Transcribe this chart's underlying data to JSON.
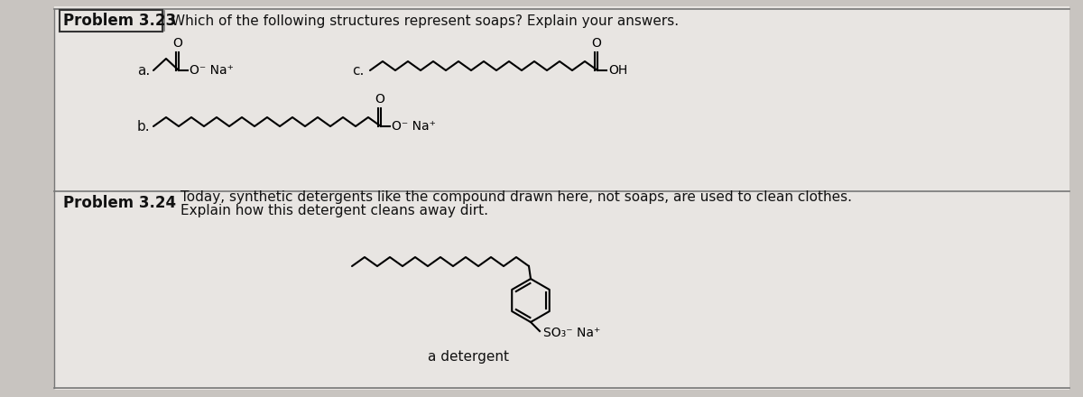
{
  "bg_color": "#c8c4c0",
  "panel_bg": "#e8e5e2",
  "text_color": "#111111",
  "problem323_label": "Problem 3.23",
  "problem323_text": "Which of the following structures represent soaps? Explain your answers.",
  "problem324_label": "Problem 3.24",
  "problem324_text1": "Today, synthetic detergents like the compound drawn here, not soaps, are used to clean clothes.",
  "problem324_text2": "Explain how this detergent cleans away dirt.",
  "label_a": "a.",
  "label_b": "b.",
  "label_c": "c.",
  "label_detergent": "a detergent",
  "font_size_problem": 12,
  "font_size_label": 11,
  "font_size_text": 11,
  "font_size_chem": 10
}
